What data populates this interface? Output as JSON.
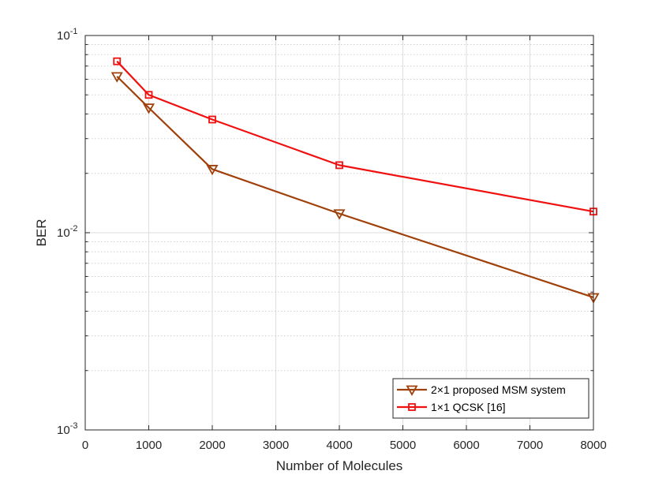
{
  "chart_data": {
    "type": "line",
    "xlabel": "Number of Molecules",
    "ylabel": "BER",
    "xlim": [
      0,
      8000
    ],
    "ylim": [
      0.001,
      0.1
    ],
    "yscale": "log",
    "grid": true,
    "legend_position": "bottom-right",
    "x_ticks": [
      0,
      1000,
      2000,
      3000,
      4000,
      5000,
      6000,
      7000,
      8000
    ],
    "x_tick_labels": [
      "0",
      "1000",
      "2000",
      "3000",
      "4000",
      "5000",
      "6000",
      "7000",
      "8000"
    ],
    "y_ticks": [
      {
        "value": 0.1,
        "base": "10",
        "exp": "-1"
      },
      {
        "value": 0.01,
        "base": "10",
        "exp": "-2"
      },
      {
        "value": 0.001,
        "base": "10",
        "exp": "-3"
      }
    ],
    "series": [
      {
        "name": "2×1 proposed MSM system",
        "color": "#a0400a",
        "marker": "triangle-down",
        "x": [
          500,
          1000,
          2000,
          4000,
          8000
        ],
        "y": [
          0.062,
          0.043,
          0.021,
          0.0125,
          0.0047
        ]
      },
      {
        "name": "1×1  QCSK [16]",
        "color": "#f01010",
        "marker": "square",
        "x": [
          500,
          1000,
          2000,
          4000,
          8000
        ],
        "y": [
          0.074,
          0.05,
          0.0375,
          0.022,
          0.0128
        ]
      }
    ]
  }
}
